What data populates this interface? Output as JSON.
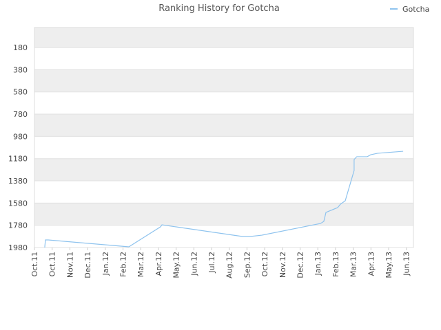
{
  "chart_data": {
    "type": "line",
    "title": "Ranking History for Gotcha",
    "series": [
      {
        "name": "Gotcha",
        "color": "#8ec3ee",
        "x": [
          0.58,
          0.62,
          0.78,
          5.33,
          7.12,
          7.2,
          11.75,
          12.18,
          12.84,
          16.15,
          16.34,
          16.46,
          17.12,
          17.28,
          17.55,
          18.05,
          18.05,
          18.2,
          18.79,
          18.99,
          19.38,
          20.82
        ],
        "values": [
          1980,
          1912,
          1912,
          1974,
          1794,
          1776,
          1881,
          1881,
          1869,
          1764,
          1745,
          1664,
          1621,
          1590,
          1559,
          1287,
          1188,
          1163,
          1163,
          1145,
          1132,
          1114
        ]
      }
    ],
    "xlim": [
      0,
      21.4
    ],
    "xticks": [
      {
        "value": 0,
        "label": "Oct.11"
      },
      {
        "value": 1,
        "label": "Oct.11"
      },
      {
        "value": 2,
        "label": "Nov.11"
      },
      {
        "value": 3,
        "label": "Dec.11"
      },
      {
        "value": 4,
        "label": "Jan.12"
      },
      {
        "value": 5,
        "label": "Feb.12"
      },
      {
        "value": 6,
        "label": "Mar.12"
      },
      {
        "value": 7,
        "label": "Apr.12"
      },
      {
        "value": 8,
        "label": "May.12"
      },
      {
        "value": 9,
        "label": "Jun.12"
      },
      {
        "value": 10,
        "label": "Jul.12"
      },
      {
        "value": 11,
        "label": "Aug.12"
      },
      {
        "value": 12,
        "label": "Sep.12"
      },
      {
        "value": 13,
        "label": "Oct.12"
      },
      {
        "value": 14,
        "label": "Nov.12"
      },
      {
        "value": 15,
        "label": "Dec.12"
      },
      {
        "value": 16,
        "label": "Jan.13"
      },
      {
        "value": 17,
        "label": "Feb.13"
      },
      {
        "value": 18,
        "label": "Mar.13"
      },
      {
        "value": 19,
        "label": "Apr.13"
      },
      {
        "value": 20,
        "label": "May.13"
      },
      {
        "value": 21,
        "label": "Jun.13"
      }
    ],
    "ylim": [
      0,
      1980
    ],
    "y_inverted": true,
    "yticks": [
      180,
      380,
      580,
      780,
      980,
      1180,
      1380,
      1580,
      1780,
      1980
    ],
    "grid": true,
    "legend": "top-right"
  }
}
